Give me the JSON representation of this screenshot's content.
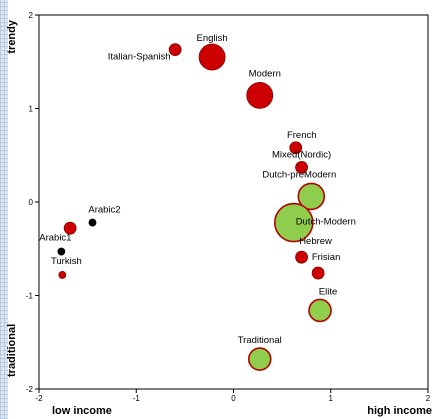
{
  "chart_data": {
    "type": "scatter",
    "xlim": [
      -2,
      2
    ],
    "ylim": [
      -2,
      2
    ],
    "x_ticks": [
      -2,
      -1,
      0,
      1,
      2
    ],
    "y_ticks": [
      -2,
      -1,
      0,
      1,
      2
    ],
    "x_axis_labels": {
      "low": "low income",
      "high": "high income"
    },
    "y_axis_labels": {
      "high": "trendy",
      "low": "traditional"
    },
    "grid": false,
    "colors": {
      "red": "#cc0000",
      "green": "#8fce4c",
      "black": "#000000",
      "green_outline": "#b40000",
      "red_outline": "#8a0000"
    },
    "points": [
      {
        "label": "English",
        "x": -0.22,
        "y": 1.55,
        "size": "large",
        "color": "red"
      },
      {
        "label": "Italian-Spanish",
        "x": -0.6,
        "y": 1.63,
        "size": "small",
        "color": "red"
      },
      {
        "label": "Modern",
        "x": 0.27,
        "y": 1.14,
        "size": "large",
        "color": "red"
      },
      {
        "label": "French",
        "x": 0.64,
        "y": 0.58,
        "size": "small",
        "color": "red"
      },
      {
        "label": "Mixed(Nordic)",
        "x": 0.7,
        "y": 0.37,
        "size": "small",
        "color": "red"
      },
      {
        "label": "Dutch-preModern",
        "x": 0.8,
        "y": 0.06,
        "size": "large",
        "color": "green"
      },
      {
        "label": "Dutch-Modern",
        "x": 0.62,
        "y": -0.22,
        "size": "xlarge",
        "color": "green"
      },
      {
        "label": "Hebrew",
        "x": 0.7,
        "y": -0.59,
        "size": "small",
        "color": "red"
      },
      {
        "label": "Frisian",
        "x": 0.87,
        "y": -0.76,
        "size": "small",
        "color": "red"
      },
      {
        "label": "Elite",
        "x": 0.89,
        "y": -1.16,
        "size": "medium",
        "color": "green"
      },
      {
        "label": "Traditional",
        "x": 0.27,
        "y": -1.68,
        "size": "medium",
        "color": "green"
      },
      {
        "label": "Arabic2",
        "x": -1.45,
        "y": -0.22,
        "size": "tiny",
        "color": "black"
      },
      {
        "label": "Arabic1",
        "x": -1.77,
        "y": -0.53,
        "size": "tiny",
        "color": "black"
      },
      {
        "label": "Turkish",
        "x": -1.76,
        "y": -0.78,
        "size": "tiny",
        "color": "red"
      },
      {
        "label": "",
        "x": -1.68,
        "y": -0.28,
        "size": "small",
        "color": "red"
      }
    ]
  }
}
